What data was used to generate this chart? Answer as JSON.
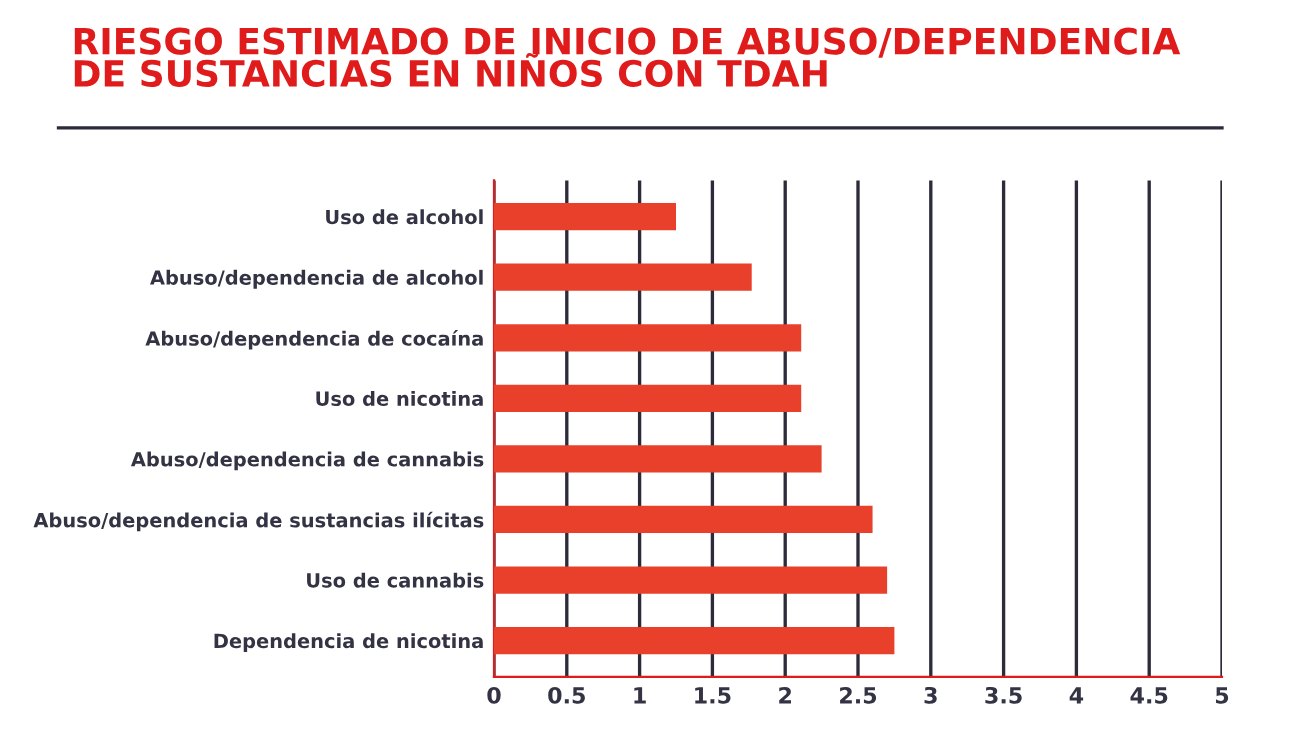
{
  "chart_data": {
    "type": "bar",
    "orientation": "horizontal",
    "title": "RIESGO ESTIMADO DE INICIO DE ABUSO/DEPENDENCIA\nDE SUSTANCIAS EN NIÑOS CON TDAH",
    "categories": [
      "Uso de alcohol",
      "Abuso/dependencia de alcohol",
      "Abuso/dependencia de cocaína",
      "Uso de nicotina",
      "Abuso/dependencia de cannabis",
      "Abuso/dependencia de sustancias ilícitas",
      "Uso de cannabis",
      "Dependencia de nicotina"
    ],
    "values": [
      1.25,
      1.77,
      2.11,
      2.11,
      2.25,
      2.6,
      2.7,
      2.75
    ],
    "color": "#e8402a",
    "xlim": [
      0,
      5
    ],
    "xticks": [
      0,
      0.5,
      1,
      1.5,
      2,
      2.5,
      3,
      3.5,
      4,
      4.5,
      5
    ],
    "grid": "x"
  }
}
